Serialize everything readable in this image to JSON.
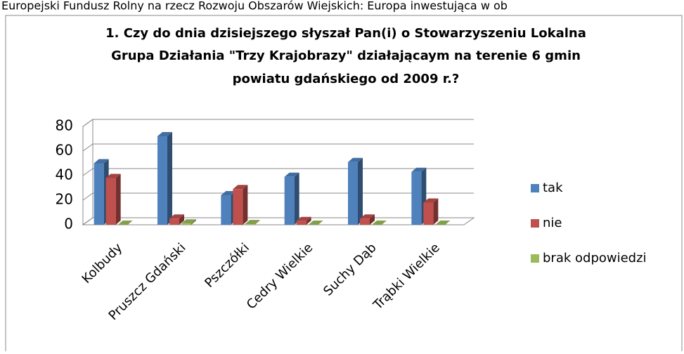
{
  "header": "Europejski Fundusz Rolny na rzecz Rozwoju Obszarów Wiejskich: Europa inwestująca w ob",
  "chart_data": {
    "type": "bar",
    "title": [
      "1. Czy do dnia dzisiejszego słyszał Pan(i) o Stowarzyszeniu Lokalna",
      "Grupa Działania \"Trzy Krajobrazy\" działającaym na terenie 6 gmin",
      "powiatu gdańskiego od 2009 r.?"
    ],
    "categories": [
      "Kolbudy",
      "Pruszcz Gdański",
      "Pszczółki",
      "Cedry Wielkie",
      "Suchy Dąb",
      "Trąbki Wielkie"
    ],
    "series": [
      {
        "name": "tak",
        "color": "#4f81bd",
        "values": [
          50,
          72,
          24,
          39,
          51,
          43
        ]
      },
      {
        "name": "nie",
        "color": "#c0504d",
        "values": [
          38,
          5,
          29,
          3,
          5,
          18
        ]
      },
      {
        "name": "brak odpowiedzi",
        "color": "#9bbb59",
        "values": [
          0,
          1,
          0.5,
          0,
          0,
          0
        ]
      }
    ],
    "ylim": [
      0,
      80
    ],
    "yticks": [
      0,
      20,
      40,
      60,
      80
    ],
    "grid": true,
    "legend": "right"
  }
}
